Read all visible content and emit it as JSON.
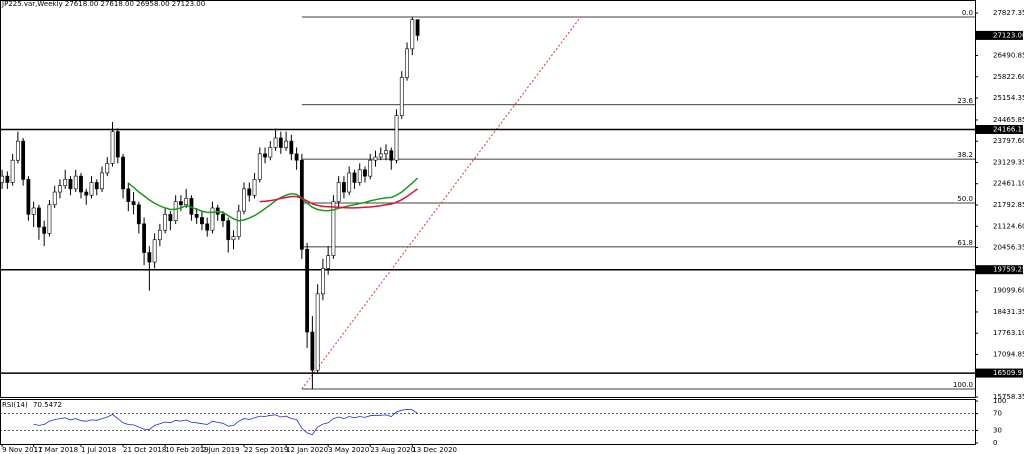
{
  "chart_data": {
    "type": "candlestick",
    "header": "JP225.var,Weekly 27618.00 27618.00 26958.00 27123.00",
    "xlim": [
      -0.4,
      185
    ],
    "ylim": [
      15758,
      28236
    ],
    "xticks": [
      {
        "value": 0,
        "label": "9 Nov 2017"
      },
      {
        "value": 6,
        "label": "11 Mar 2018"
      },
      {
        "value": 15,
        "label": "1 Jul 2018"
      },
      {
        "value": 23,
        "label": "21 Oct 2018"
      },
      {
        "value": 31,
        "label": "10 Feb 2019"
      },
      {
        "value": 38,
        "label": "2 Jun 2019"
      },
      {
        "value": 46,
        "label": "22 Sep 2019"
      },
      {
        "value": 54,
        "label": "12 Jan 2020"
      },
      {
        "value": 62,
        "label": "3 May 2020"
      },
      {
        "value": 70,
        "label": "23 Aug 2020"
      },
      {
        "value": 78,
        "label": "13 Dec 2020"
      }
    ],
    "yticks": [
      {
        "value": 27827.35,
        "label": "27827.35"
      },
      {
        "value": 26490.85,
        "label": "26490.85"
      },
      {
        "value": 25822.6,
        "label": "25822.60"
      },
      {
        "value": 25154.35,
        "label": "25154.35"
      },
      {
        "value": 24465.85,
        "label": "24465.85"
      },
      {
        "value": 23797.6,
        "label": "23797.60"
      },
      {
        "value": 23129.35,
        "label": "23129.35"
      },
      {
        "value": 22461.1,
        "label": "22461.10"
      },
      {
        "value": 21792.85,
        "label": "21792.85"
      },
      {
        "value": 21124.6,
        "label": "21124.60"
      },
      {
        "value": 20456.35,
        "label": "20456.35"
      },
      {
        "value": 19099.6,
        "label": "19099.60"
      },
      {
        "value": 18431.35,
        "label": "18431.35"
      },
      {
        "value": 17763.1,
        "label": "17763.10"
      },
      {
        "value": 17094.85,
        "label": "17094.85"
      },
      {
        "value": 15758.35,
        "label": "15758.35"
      }
    ],
    "price_marker": {
      "value": 27123,
      "label": "27123.00"
    },
    "hlines": [
      24166.13,
      19759.25,
      16509.93
    ],
    "fib": {
      "high": 27702,
      "low": 16010,
      "x": 57,
      "levels": [
        {
          "value": 0,
          "label": "0.0"
        },
        {
          "value": 23.6,
          "label": "23.6"
        },
        {
          "value": 38.2,
          "label": "38.2"
        },
        {
          "value": 50,
          "label": "50.0"
        },
        {
          "value": 61.8,
          "label": "61.8"
        },
        {
          "value": 100,
          "label": "100.0"
        }
      ]
    },
    "trendline": {
      "x": [
        57,
        110
      ],
      "y": [
        16010,
        27702
      ],
      "color": "#e0302a"
    },
    "ohlc": [
      [
        22500,
        22900,
        22300,
        22700
      ],
      [
        22700,
        22850,
        22300,
        22500
      ],
      [
        22500,
        23400,
        22400,
        23200
      ],
      [
        23200,
        24100,
        23100,
        23800
      ],
      [
        23800,
        23900,
        22400,
        22600
      ],
      [
        22600,
        22700,
        21300,
        21500
      ],
      [
        21500,
        21900,
        21100,
        21700
      ],
      [
        21700,
        21800,
        20700,
        21100
      ],
      [
        21100,
        21300,
        20500,
        20900
      ],
      [
        20900,
        21950,
        20800,
        21800
      ],
      [
        21800,
        22400,
        21700,
        22200
      ],
      [
        22200,
        22600,
        22000,
        22400
      ],
      [
        22400,
        22900,
        22300,
        22600
      ],
      [
        22600,
        22700,
        22100,
        22300
      ],
      [
        22300,
        22900,
        22200,
        22700
      ],
      [
        22700,
        22800,
        22000,
        22200
      ],
      [
        22200,
        22300,
        21800,
        22100
      ],
      [
        22100,
        22700,
        22000,
        22500
      ],
      [
        22500,
        22600,
        22100,
        22300
      ],
      [
        22300,
        23000,
        22200,
        22800
      ],
      [
        22800,
        23300,
        22700,
        23100
      ],
      [
        23100,
        24400,
        23000,
        24100
      ],
      [
        24100,
        24200,
        23100,
        23300
      ],
      [
        23300,
        23400,
        22000,
        22300
      ],
      [
        22300,
        22500,
        21600,
        21900
      ],
      [
        21900,
        22200,
        21500,
        21800
      ],
      [
        21800,
        21900,
        20900,
        21200
      ],
      [
        21200,
        21400,
        19900,
        20300
      ],
      [
        20300,
        20500,
        19100,
        20000
      ],
      [
        20000,
        20900,
        19800,
        20700
      ],
      [
        20700,
        21200,
        20500,
        21000
      ],
      [
        21000,
        21700,
        20900,
        21500
      ],
      [
        21500,
        21600,
        21000,
        21300
      ],
      [
        21300,
        22100,
        21200,
        21900
      ],
      [
        21900,
        22100,
        21600,
        21800
      ],
      [
        21800,
        22300,
        21700,
        22000
      ],
      [
        22000,
        22100,
        21300,
        21500
      ],
      [
        21500,
        21700,
        21200,
        21400
      ],
      [
        21400,
        21600,
        21000,
        21200
      ],
      [
        21200,
        21400,
        20800,
        21000
      ],
      [
        21000,
        21900,
        20900,
        21700
      ],
      [
        21700,
        21800,
        21300,
        21500
      ],
      [
        21500,
        21600,
        21100,
        21300
      ],
      [
        21300,
        21400,
        20300,
        20700
      ],
      [
        20700,
        21000,
        20400,
        20800
      ],
      [
        20800,
        21800,
        20700,
        21600
      ],
      [
        21600,
        22500,
        21500,
        22300
      ],
      [
        22300,
        22500,
        21900,
        22100
      ],
      [
        22100,
        22800,
        22000,
        22600
      ],
      [
        22600,
        23600,
        22500,
        23400
      ],
      [
        23400,
        23600,
        23100,
        23300
      ],
      [
        23300,
        23800,
        23200,
        23600
      ],
      [
        23600,
        24200,
        23500,
        23900
      ],
      [
        23900,
        24100,
        23400,
        23600
      ],
      [
        23600,
        24100,
        23500,
        23800
      ],
      [
        23800,
        24000,
        23200,
        23400
      ],
      [
        23400,
        23600,
        22900,
        23200
      ],
      [
        23200,
        23400,
        20100,
        20400
      ],
      [
        20400,
        20600,
        17300,
        17800
      ],
      [
        17800,
        18300,
        16010,
        16600
      ],
      [
        16600,
        19300,
        16500,
        19000
      ],
      [
        19000,
        20100,
        18800,
        19800
      ],
      [
        19800,
        20500,
        19600,
        20200
      ],
      [
        20200,
        22100,
        20100,
        21900
      ],
      [
        21900,
        22700,
        21700,
        22500
      ],
      [
        22500,
        22700,
        22000,
        22200
      ],
      [
        22200,
        23000,
        22100,
        22800
      ],
      [
        22800,
        22900,
        22300,
        22500
      ],
      [
        22500,
        23100,
        22400,
        22900
      ],
      [
        22900,
        23000,
        22500,
        22700
      ],
      [
        22700,
        23400,
        22600,
        23200
      ],
      [
        23200,
        23500,
        23000,
        23300
      ],
      [
        23300,
        23600,
        23200,
        23400
      ],
      [
        23400,
        23700,
        23200,
        23500
      ],
      [
        23500,
        23600,
        22900,
        23200
      ],
      [
        23200,
        24800,
        23100,
        24600
      ],
      [
        24600,
        26000,
        24500,
        25800
      ],
      [
        25800,
        26900,
        25700,
        26700
      ],
      [
        26700,
        27702,
        26500,
        27618
      ],
      [
        27618,
        27618,
        26958,
        27123
      ]
    ],
    "series": [
      {
        "color": "#1a9a1a",
        "values": [
          null,
          null,
          null,
          null,
          null,
          null,
          null,
          null,
          null,
          null,
          null,
          null,
          null,
          null,
          null,
          null,
          null,
          null,
          null,
          null,
          null,
          null,
          null,
          null,
          22480,
          22350,
          22200,
          22080,
          21950,
          21850,
          21760,
          21700,
          21650,
          21660,
          21700,
          21780,
          21720,
          21660,
          21600,
          21560,
          21560,
          21580,
          21560,
          21460,
          21360,
          21300,
          21320,
          21380,
          21460,
          21560,
          21680,
          21800,
          21930,
          22030,
          22100,
          22150,
          22130,
          22000,
          21850,
          21720,
          21650,
          21620,
          21610,
          21640,
          21690,
          21730,
          21770,
          21800,
          21840,
          21870,
          21920,
          21960,
          21990,
          22020,
          22030,
          22100,
          22200,
          22340,
          22480,
          22640
        ]
      },
      {
        "color": "#e0103a",
        "values": [
          null,
          null,
          null,
          null,
          null,
          null,
          null,
          null,
          null,
          null,
          null,
          null,
          null,
          null,
          null,
          null,
          null,
          null,
          null,
          null,
          null,
          null,
          null,
          null,
          null,
          null,
          null,
          null,
          null,
          null,
          null,
          null,
          null,
          null,
          null,
          null,
          null,
          null,
          null,
          null,
          null,
          null,
          null,
          null,
          null,
          null,
          null,
          null,
          null,
          21900,
          21910,
          21930,
          21960,
          22000,
          22030,
          22060,
          22060,
          22000,
          21920,
          21830,
          21780,
          21750,
          21740,
          21730,
          21720,
          21710,
          21700,
          21700,
          21710,
          21720,
          21730,
          21750,
          21770,
          21800,
          21820,
          21880,
          21960,
          22060,
          22180,
          22300
        ]
      }
    ],
    "rsi": {
      "name": "RSI(14)",
      "color": "#1e2ee0",
      "ylim": [
        0,
        100
      ],
      "yticks": [
        100,
        70,
        30,
        0
      ],
      "levels": [
        70,
        30
      ],
      "values": [
        null,
        null,
        null,
        null,
        null,
        null,
        45,
        42,
        44,
        52,
        56,
        58,
        60,
        55,
        58,
        53,
        52,
        55,
        54,
        58,
        62,
        68,
        58,
        48,
        44,
        43,
        38,
        33,
        32,
        42,
        46,
        50,
        48,
        54,
        52,
        55,
        49,
        48,
        46,
        44,
        52,
        49,
        47,
        40,
        42,
        52,
        58,
        56,
        60,
        64,
        63,
        66,
        67,
        62,
        64,
        58,
        56,
        35,
        24,
        20,
        38,
        45,
        48,
        58,
        62,
        58,
        63,
        60,
        63,
        61,
        65,
        66,
        66,
        67,
        63,
        74,
        78,
        80,
        79,
        70.5472
      ]
    }
  }
}
